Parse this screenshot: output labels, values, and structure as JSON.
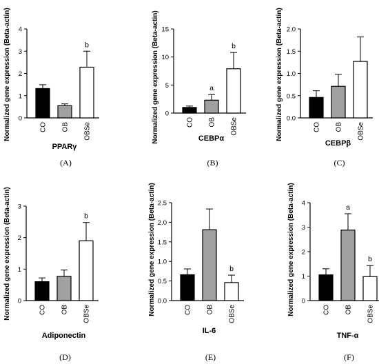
{
  "chart_data": [
    {
      "type": "bar",
      "panel_label": "(A)",
      "xlabel": "PPARγ",
      "ylabel": "Normalized gene expression (Beta-actin)",
      "categories": [
        "CO",
        "OB",
        "OBSe"
      ],
      "values": [
        1.32,
        0.55,
        2.28
      ],
      "errors": [
        0.17,
        0.08,
        0.72
      ],
      "annotations": [
        "",
        "",
        "b"
      ],
      "fills": [
        "#000000",
        "#a0a0a0",
        "#ffffff"
      ],
      "ylim": [
        0,
        4
      ],
      "yticks": [
        "0",
        "1",
        "2",
        "3",
        "4"
      ]
    },
    {
      "type": "bar",
      "panel_label": "(B)",
      "xlabel": "CEBPα",
      "ylabel": "Normalized gene expression (Beta-actin)",
      "categories": [
        "CO",
        "OB",
        "OBSe"
      ],
      "values": [
        1.0,
        2.3,
        7.9
      ],
      "errors": [
        0.25,
        1.0,
        2.9
      ],
      "annotations": [
        "",
        "a",
        "b"
      ],
      "fills": [
        "#000000",
        "#a0a0a0",
        "#ffffff"
      ],
      "ylim": [
        0,
        15
      ],
      "yticks": [
        "0",
        "5",
        "10",
        "15"
      ]
    },
    {
      "type": "bar",
      "panel_label": "(C)",
      "xlabel": "CEBPβ",
      "ylabel": "Normalized gene expression (Beta-actin)",
      "categories": [
        "CO",
        "OB",
        "OBSe"
      ],
      "values": [
        0.46,
        0.71,
        1.27
      ],
      "errors": [
        0.15,
        0.27,
        0.55
      ],
      "annotations": [
        "",
        "",
        ""
      ],
      "fills": [
        "#000000",
        "#a0a0a0",
        "#ffffff"
      ],
      "ylim": [
        0,
        2.0
      ],
      "yticks": [
        "0.0",
        "0.5",
        "1.0",
        "1.5",
        "2.0"
      ]
    },
    {
      "type": "bar",
      "panel_label": "(D)",
      "xlabel": "Adiponectin",
      "ylabel": "Normalized gene expression (Beta-actin)",
      "categories": [
        "CO",
        "OB",
        "OBSe"
      ],
      "values": [
        0.6,
        0.77,
        1.9
      ],
      "errors": [
        0.12,
        0.2,
        0.58
      ],
      "annotations": [
        "",
        "",
        "b"
      ],
      "fills": [
        "#000000",
        "#a0a0a0",
        "#ffffff"
      ],
      "ylim": [
        0,
        3
      ],
      "yticks": [
        "0",
        "1",
        "2",
        "3"
      ]
    },
    {
      "type": "bar",
      "panel_label": "(E)",
      "xlabel": "IL-6",
      "ylabel": "Normalized gene expression (Beta-actin)",
      "categories": [
        "CO",
        "OB",
        "OBSe"
      ],
      "values": [
        0.66,
        1.81,
        0.46
      ],
      "errors": [
        0.15,
        0.53,
        0.19
      ],
      "annotations": [
        "",
        "",
        "b"
      ],
      "fills": [
        "#000000",
        "#a0a0a0",
        "#ffffff"
      ],
      "ylim": [
        0,
        2.5
      ],
      "yticks": [
        "0.0",
        "0.5",
        "1.0",
        "1.5",
        "2.0",
        "2.5"
      ]
    },
    {
      "type": "bar",
      "panel_label": "(F)",
      "xlabel": "TNF-α",
      "ylabel": "Normalized gene expression (Beta-actin)",
      "categories": [
        "CO",
        "OB",
        "OBSe"
      ],
      "values": [
        1.05,
        2.88,
        0.98
      ],
      "errors": [
        0.25,
        0.67,
        0.45
      ],
      "annotations": [
        "",
        "a",
        "b"
      ],
      "fills": [
        "#000000",
        "#a0a0a0",
        "#ffffff"
      ],
      "ylim": [
        0,
        4
      ],
      "yticks": [
        "0",
        "1",
        "2",
        "3",
        "4"
      ]
    }
  ]
}
